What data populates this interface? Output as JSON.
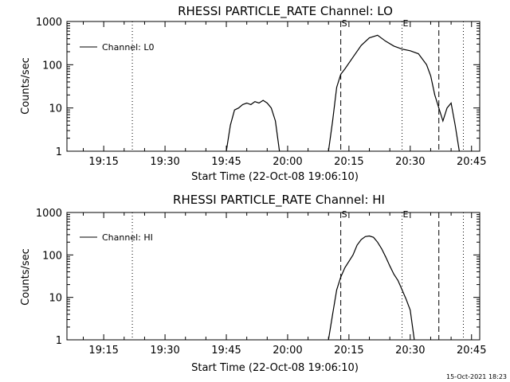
{
  "footer_timestamp": "15-Oct-2021 18:23",
  "chart_data": [
    {
      "type": "line",
      "title": "RHESSI PARTICLE_RATE Channel: LO",
      "xlabel": "Start Time (22-Oct-08 19:06:10)",
      "ylabel": "Counts/sec",
      "yscale": "log",
      "ylim": [
        1,
        1000
      ],
      "xlim": [
        "19:06",
        "20:47"
      ],
      "x_ticks": [
        "19:15",
        "19:30",
        "19:45",
        "20:00",
        "20:15",
        "20:30",
        "20:45"
      ],
      "y_ticks": [
        "1",
        "10",
        "100",
        "1000"
      ],
      "legend": "top-left",
      "grid": false,
      "markers": [
        {
          "label": "S",
          "time": "20:13",
          "style": "dashed"
        },
        {
          "label": "E",
          "time": "20:28",
          "style": "dotted"
        },
        {
          "label": "",
          "time": "19:22",
          "style": "dotted"
        },
        {
          "label": "",
          "time": "20:37",
          "style": "dashed"
        },
        {
          "label": "",
          "time": "20:43",
          "style": "dotted"
        }
      ],
      "series": [
        {
          "name": "Channel: L0",
          "x": [
            "19:45",
            "19:46",
            "19:47",
            "19:48",
            "19:49",
            "19:50",
            "19:51",
            "19:52",
            "19:53",
            "19:54",
            "19:55",
            "19:56",
            "19:57",
            "19:58",
            null,
            "20:10",
            "20:11",
            "20:12",
            "20:13",
            "20:14",
            "20:16",
            "20:18",
            "20:20",
            "20:22",
            "20:24",
            "20:26",
            "20:28",
            "20:30",
            "20:32",
            "20:34",
            "20:35",
            "20:36",
            "20:37",
            "20:38",
            "20:39",
            "20:40",
            "20:41",
            "20:42"
          ],
          "values": [
            1,
            4,
            9,
            10,
            12,
            13,
            12,
            14,
            13,
            15,
            13,
            10,
            5,
            1,
            null,
            1,
            5,
            30,
            60,
            80,
            150,
            280,
            420,
            480,
            350,
            270,
            230,
            210,
            180,
            100,
            55,
            20,
            10,
            5,
            10,
            13,
            4,
            1
          ]
        }
      ]
    },
    {
      "type": "line",
      "title": "RHESSI PARTICLE_RATE Channel: HI",
      "xlabel": "Start Time (22-Oct-08 19:06:10)",
      "ylabel": "Counts/sec",
      "yscale": "log",
      "ylim": [
        1,
        1000
      ],
      "xlim": [
        "19:06",
        "20:47"
      ],
      "x_ticks": [
        "19:15",
        "19:30",
        "19:45",
        "20:00",
        "20:15",
        "20:30",
        "20:45"
      ],
      "y_ticks": [
        "1",
        "10",
        "100",
        "1000"
      ],
      "legend": "top-left",
      "grid": false,
      "markers": [
        {
          "label": "S",
          "time": "20:13",
          "style": "dashed"
        },
        {
          "label": "E",
          "time": "20:28",
          "style": "dotted"
        },
        {
          "label": "",
          "time": "19:22",
          "style": "dotted"
        },
        {
          "label": "",
          "time": "20:37",
          "style": "dashed"
        },
        {
          "label": "",
          "time": "20:43",
          "style": "dotted"
        }
      ],
      "series": [
        {
          "name": "Channel: HI",
          "x": [
            "20:10",
            "20:11",
            "20:12",
            "20:13",
            "20:14",
            "20:16",
            "20:17",
            "20:18",
            "20:19",
            "20:20",
            "20:21",
            "20:22",
            "20:23",
            "20:24",
            "20:25",
            "20:26",
            "20:27",
            "20:28",
            "20:29",
            "20:30",
            "20:31"
          ],
          "values": [
            1,
            4,
            15,
            30,
            50,
            100,
            170,
            230,
            270,
            280,
            260,
            200,
            140,
            90,
            55,
            35,
            25,
            15,
            9,
            5,
            1
          ]
        }
      ]
    }
  ]
}
